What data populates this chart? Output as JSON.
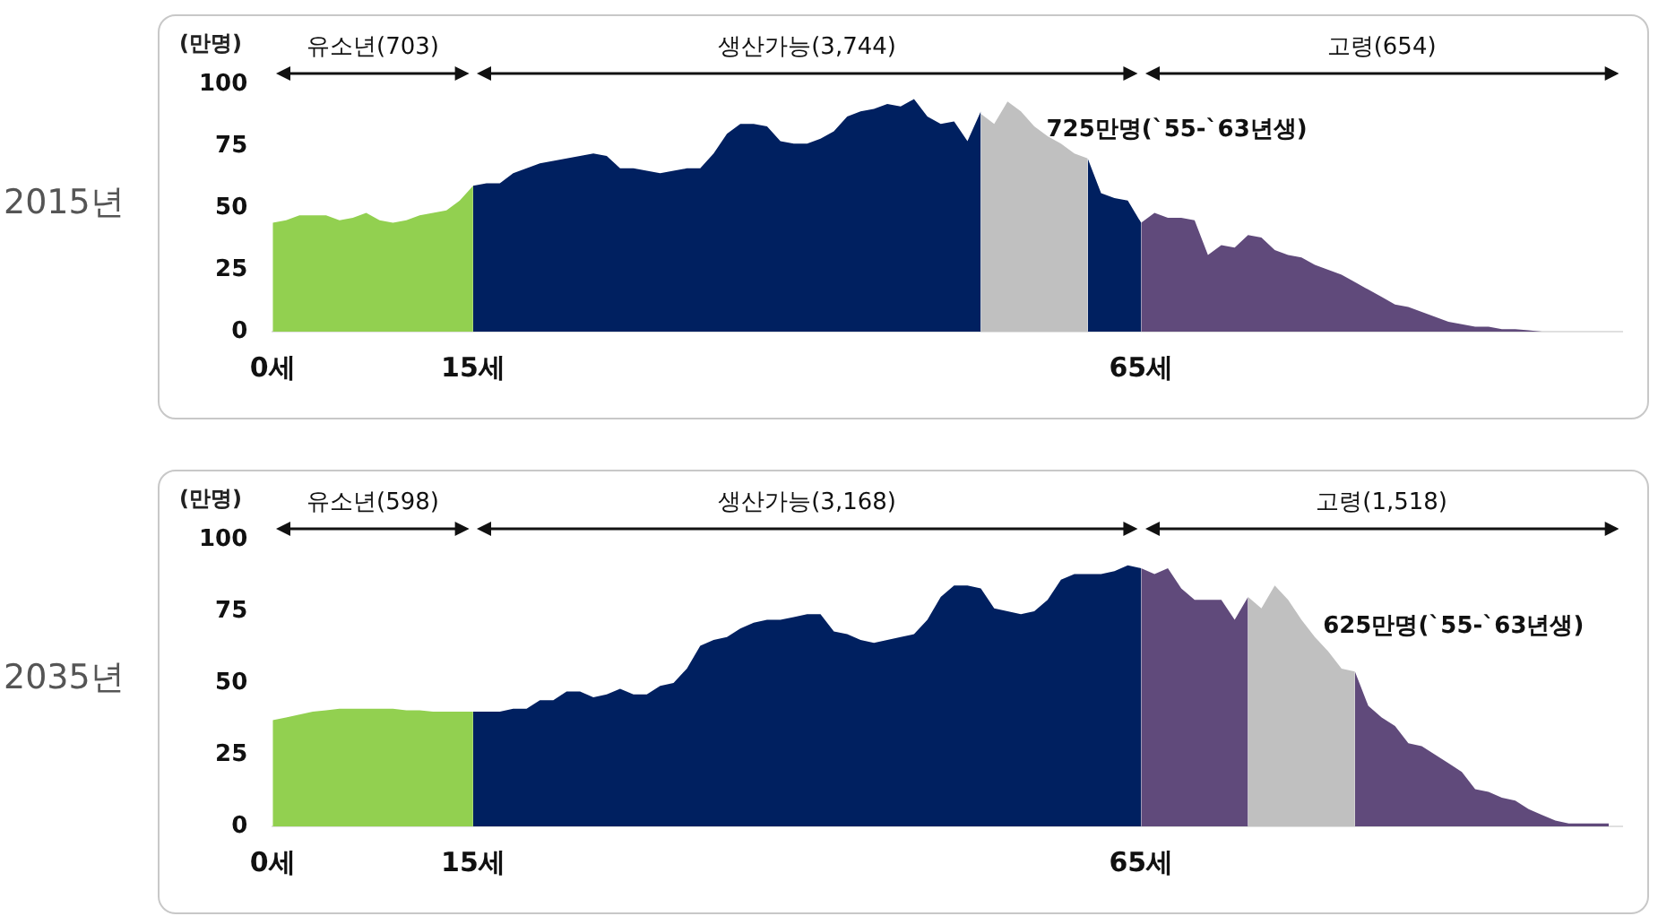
{
  "chart_data": [
    {
      "type": "area",
      "title": "2015년",
      "ylabel": "(만명)",
      "xlim": [
        0,
        101
      ],
      "xticks": [
        {
          "value": 0,
          "label": "0세"
        },
        {
          "value": 15,
          "label": "15세"
        },
        {
          "value": 65,
          "label": "65세"
        }
      ],
      "ylim": [
        0,
        100
      ],
      "yticks": [
        0,
        25,
        50,
        75,
        100
      ],
      "grid": false,
      "legend": false,
      "annotations": [
        "유소년(703)",
        "생산가능(3,744)",
        "고령(654)",
        "725만명(`55-`63년생)"
      ],
      "series": [
        {
          "color": "#92d050",
          "x": [
            0,
            1,
            2,
            3,
            4,
            5,
            6,
            7,
            8,
            9,
            10,
            11,
            12,
            13,
            14,
            15
          ],
          "values": [
            44,
            45,
            47,
            47,
            47,
            45,
            46,
            48,
            45,
            44,
            45,
            47,
            48,
            49,
            53,
            59
          ]
        },
        {
          "color": "#002060",
          "x": [
            15,
            16,
            17,
            18,
            19,
            20,
            21,
            22,
            23,
            24,
            25,
            26,
            27,
            28,
            29,
            30,
            31,
            32,
            33,
            34,
            35,
            36,
            37,
            38,
            39,
            40,
            41,
            42,
            43,
            44,
            45,
            46,
            47,
            48,
            49,
            50,
            51,
            52,
            53
          ],
          "values": [
            59,
            60,
            60,
            64,
            66,
            68,
            69,
            70,
            71,
            72,
            71,
            66,
            66,
            65,
            64,
            65,
            66,
            66,
            72,
            80,
            84,
            84,
            83,
            77,
            76,
            76,
            78,
            81,
            87,
            89,
            90,
            92,
            91,
            94,
            87,
            84,
            85,
            77,
            89
          ]
        },
        {
          "color": "#c0c0c0",
          "x": [
            53,
            54,
            55,
            56,
            57,
            58,
            59,
            60,
            61
          ],
          "values": [
            88,
            84,
            93,
            89,
            83,
            79,
            76,
            72,
            70
          ]
        },
        {
          "color": "#002060",
          "x": [
            61,
            62,
            63,
            64,
            65
          ],
          "values": [
            70,
            56,
            54,
            53,
            44
          ]
        },
        {
          "color": "#604a7b",
          "x": [
            65,
            66,
            67,
            68,
            69,
            70,
            71,
            72,
            73,
            74,
            75,
            76,
            77,
            78,
            79,
            80,
            81,
            82,
            83,
            84,
            85,
            86,
            87,
            88,
            89,
            90,
            91,
            92,
            93,
            94,
            95,
            96,
            97,
            98,
            99,
            100
          ],
          "values": [
            44,
            48,
            46,
            46,
            45,
            31,
            35,
            34,
            39,
            38,
            33,
            31,
            30,
            27,
            25,
            23,
            20,
            17,
            14,
            11,
            10,
            8,
            6,
            4,
            3,
            2,
            2,
            1,
            1,
            0.5,
            0,
            0,
            0,
            0,
            0,
            0
          ]
        }
      ]
    },
    {
      "type": "area",
      "title": "2035년",
      "ylabel": "(만명)",
      "xlim": [
        0,
        101
      ],
      "xticks": [
        {
          "value": 0,
          "label": "0세"
        },
        {
          "value": 15,
          "label": "15세"
        },
        {
          "value": 65,
          "label": "65세"
        }
      ],
      "ylim": [
        0,
        100
      ],
      "yticks": [
        0,
        25,
        50,
        75,
        100
      ],
      "grid": false,
      "legend": false,
      "annotations": [
        "유소년(598)",
        "생산가능(3,168)",
        "고령(1,518)",
        "625만명(`55-`63년생)"
      ],
      "series": [
        {
          "color": "#92d050",
          "x": [
            0,
            1,
            2,
            3,
            4,
            5,
            6,
            7,
            8,
            9,
            10,
            11,
            12,
            13,
            14,
            15
          ],
          "values": [
            37,
            38,
            39,
            40,
            40.5,
            41,
            41,
            41,
            41,
            41,
            40.5,
            40.5,
            40,
            40,
            40,
            40
          ]
        },
        {
          "color": "#002060",
          "x": [
            15,
            16,
            17,
            18,
            19,
            20,
            21,
            22,
            23,
            24,
            25,
            26,
            27,
            28,
            29,
            30,
            31,
            32,
            33,
            34,
            35,
            36,
            37,
            38,
            39,
            40,
            41,
            42,
            43,
            44,
            45,
            46,
            47,
            48,
            49,
            50,
            51,
            52,
            53,
            54,
            55,
            56,
            57,
            58,
            59,
            60,
            61,
            62,
            63,
            64,
            65
          ],
          "values": [
            40,
            40,
            40,
            41,
            41,
            44,
            44,
            47,
            47,
            45,
            46,
            48,
            46,
            46,
            49,
            50,
            55,
            63,
            65,
            66,
            69,
            71,
            72,
            72,
            73,
            74,
            74,
            68,
            67,
            65,
            64,
            65,
            66,
            67,
            72,
            80,
            84,
            84,
            83,
            76,
            75,
            74,
            75,
            79,
            86,
            88,
            88,
            88,
            89,
            91,
            90
          ]
        },
        {
          "color": "#604a7b",
          "x": [
            65,
            66,
            67,
            68,
            69,
            70,
            71,
            72,
            73
          ],
          "values": [
            90,
            88,
            90,
            83,
            79,
            79,
            79,
            72,
            80
          ]
        },
        {
          "color": "#c0c0c0",
          "x": [
            73,
            74,
            75,
            76,
            77,
            78,
            79,
            80,
            81
          ],
          "values": [
            80,
            76,
            84,
            79,
            72,
            66,
            61,
            55,
            54
          ]
        },
        {
          "color": "#604a7b",
          "x": [
            81,
            82,
            83,
            84,
            85,
            86,
            87,
            88,
            89,
            90,
            91,
            92,
            93,
            94,
            95,
            96,
            97,
            98,
            99,
            100
          ],
          "values": [
            54,
            42,
            38,
            35,
            29,
            28,
            25,
            22,
            19,
            13,
            12,
            10,
            9,
            6,
            4,
            2,
            1,
            1,
            1,
            1
          ]
        }
      ]
    }
  ]
}
